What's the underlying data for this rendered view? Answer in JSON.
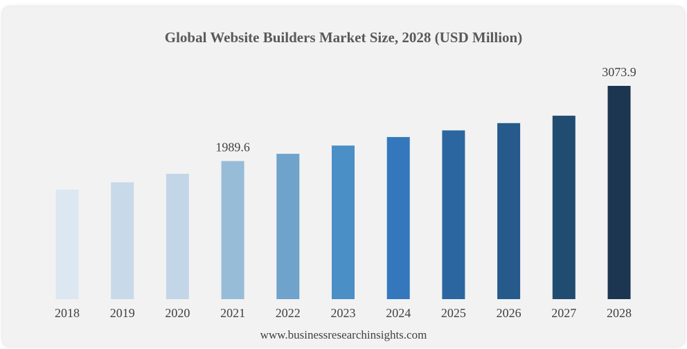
{
  "chart_data": {
    "type": "bar",
    "title": "Global Website Builders Market Size, 2028 (USD Million)",
    "categories": [
      "2018",
      "2019",
      "2020",
      "2021",
      "2022",
      "2023",
      "2024",
      "2025",
      "2026",
      "2027",
      "2028"
    ],
    "values": [
      1577,
      1684,
      1806,
      1989.6,
      2095,
      2214,
      2336,
      2432,
      2537,
      2644,
      3073.9
    ],
    "data_labels": [
      {
        "category": "2021",
        "text": "1989.6"
      },
      {
        "category": "2028",
        "text": "3073.9"
      }
    ],
    "colors": [
      "#dce7f2",
      "#c8d9e9",
      "#c3d6e8",
      "#97bcd8",
      "#6fa3cb",
      "#4a8fc6",
      "#3477bc",
      "#2b66a1",
      "#255a8b",
      "#214c71",
      "#1c3651"
    ],
    "grid": false,
    "legend": "none"
  },
  "footer": "www.businessresearchinsights.com"
}
